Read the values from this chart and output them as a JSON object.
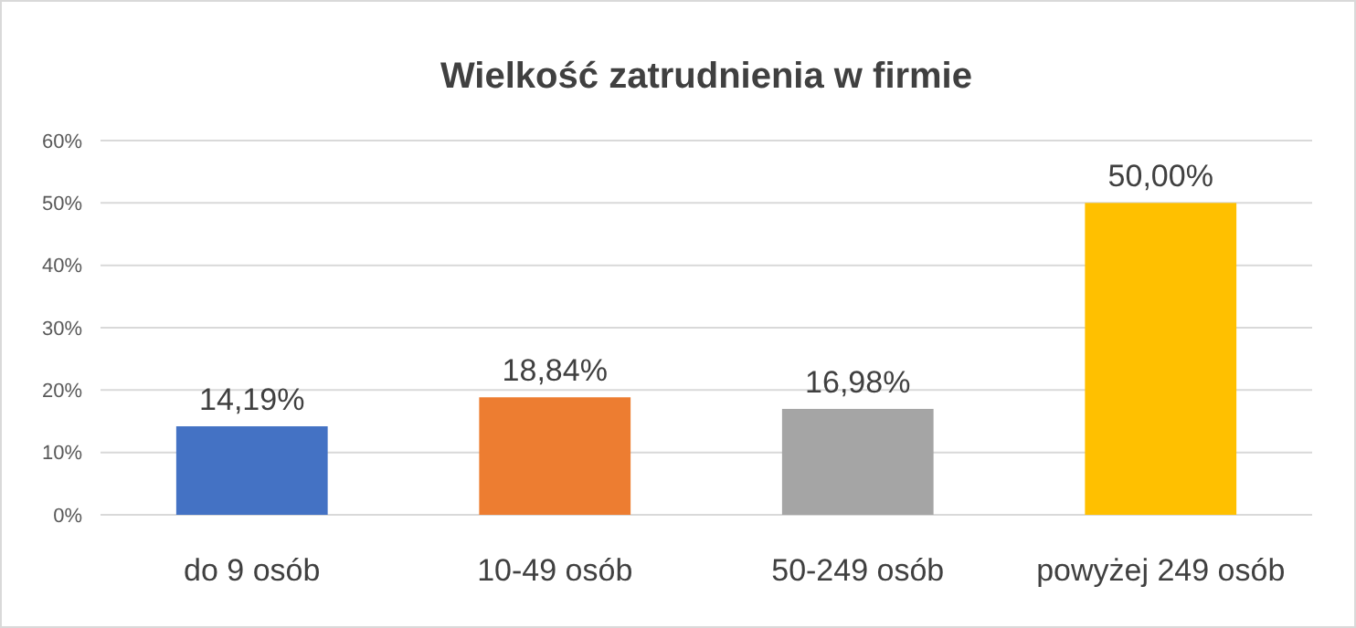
{
  "chart_data": {
    "type": "bar",
    "title": "Wielkość zatrudnienia w firmie",
    "categories": [
      "do 9 osób",
      "10-49 osób",
      "50-249 osób",
      "powyżej 249 osób"
    ],
    "values": [
      14.19,
      18.84,
      16.98,
      50
    ],
    "colors": [
      "#4472c4",
      "#ed7d31",
      "#a5a5a5",
      "#ffc000"
    ],
    "value_labels": [
      "14,19%",
      "18,84%",
      "16,98%",
      "50,00%"
    ],
    "ylim": [
      0,
      60
    ],
    "yticks": [
      {
        "value": 0,
        "label": "0%"
      },
      {
        "value": 10,
        "label": "10%"
      },
      {
        "value": 20,
        "label": "20%"
      },
      {
        "value": 30,
        "label": "30%"
      },
      {
        "value": 40,
        "label": "40%"
      },
      {
        "value": 50,
        "label": "50%"
      },
      {
        "value": 60,
        "label": "60%"
      }
    ],
    "grid": "y"
  }
}
